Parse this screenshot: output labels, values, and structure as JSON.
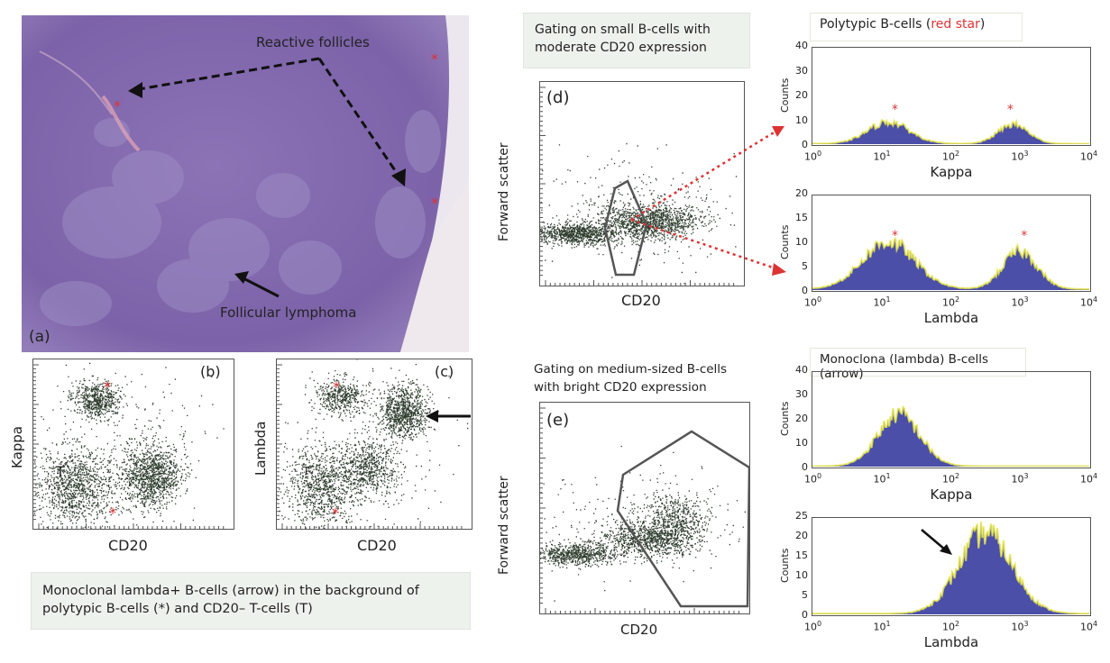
{
  "panel_a": {
    "label": "(a)",
    "reactive_follicles": "Reactive follicles",
    "follicular_lymphoma": "Follicular lymphoma",
    "star": "*"
  },
  "panel_b": {
    "label": "(b)",
    "ylabel": "Kappa",
    "xlabel": "CD20",
    "t_label": "T",
    "star": "*"
  },
  "panel_c": {
    "label": "(c)",
    "ylabel": "Lambda",
    "xlabel": "CD20",
    "t_label": "T",
    "star": "*"
  },
  "caption_bc": "Monoclonal lambda+ B-cells (arrow) in the background of polytypic B-cells (*) and CD20– T-cells (T)",
  "panel_d": {
    "label": "(d)",
    "gate_caption": "Gating on small B-cells with moderate CD20 expression",
    "ylabel": "Forward scatter",
    "xlabel": "CD20"
  },
  "panel_e": {
    "label": "(e)",
    "gate_caption": "Gating on medium-sized B-cells with bright CD20 expression",
    "ylabel": "Forward scatter",
    "xlabel": "CD20"
  },
  "hist_top_title": {
    "prefix": "Polytypic B-cells (",
    "highlight": "red star",
    "suffix": ")"
  },
  "hist_bottom_title": "Monoclona (lambda) B-cells (arrow)",
  "counts_label": "Counts",
  "chart_data": [
    {
      "type": "area",
      "xlabel": "Kappa",
      "ylabel": "Counts",
      "ylim": [
        0,
        40
      ],
      "yticks": [
        "0",
        "10",
        "20",
        "30",
        "40"
      ],
      "xticks": [
        "10",
        "10",
        "10",
        "10",
        "10"
      ],
      "xexp": [
        "0",
        "1",
        "2",
        "3",
        "4"
      ],
      "peaks_star": "*"
    },
    {
      "type": "area",
      "xlabel": "Lambda",
      "ylabel": "Counts",
      "ylim": [
        0,
        20
      ],
      "yticks": [
        "0",
        "5",
        "10",
        "15",
        "20"
      ],
      "xticks": [
        "10",
        "10",
        "10",
        "10",
        "10"
      ],
      "xexp": [
        "0",
        "1",
        "2",
        "3",
        "4"
      ],
      "peaks_star": "*"
    },
    {
      "type": "area",
      "xlabel": "Kappa",
      "ylabel": "Counts",
      "ylim": [
        0,
        40
      ],
      "yticks": [
        "0",
        "10",
        "20",
        "30",
        "40"
      ],
      "xticks": [
        "10",
        "10",
        "10",
        "10",
        "10"
      ],
      "xexp": [
        "0",
        "1",
        "2",
        "3",
        "4"
      ]
    },
    {
      "type": "area",
      "xlabel": "Lambda",
      "ylabel": "Counts",
      "ylim": [
        0,
        25
      ],
      "yticks": [
        "0",
        "5",
        "10",
        "15",
        "20",
        "25"
      ],
      "xticks": [
        "10",
        "10",
        "10",
        "10",
        "10"
      ],
      "xexp": [
        "0",
        "1",
        "2",
        "3",
        "4"
      ]
    }
  ],
  "colors": {
    "hist_fill": "#4b4fa8",
    "hist_edge": "#e8e84a",
    "dots": "#2f3d2e",
    "star": "#d33333",
    "tissue": "#8a6fb0"
  }
}
